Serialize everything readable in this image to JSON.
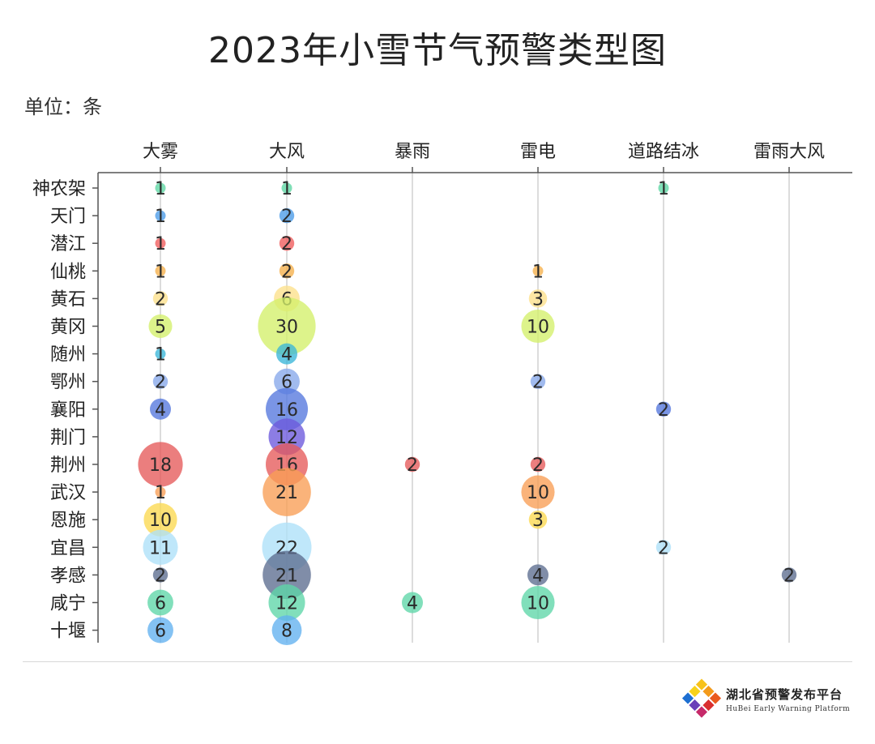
{
  "chart_data": {
    "type": "bubble",
    "title": "2023年小雪节气预警类型图",
    "unit_label": "单位：条",
    "categories": [
      "大雾",
      "大风",
      "暴雨",
      "雷电",
      "道路结冰",
      "雷雨大风"
    ],
    "regions": [
      {
        "name": "神农架",
        "color": "#5cd6a3",
        "values": [
          1,
          1,
          null,
          null,
          1,
          null
        ]
      },
      {
        "name": "天门",
        "color": "#4a9be8",
        "values": [
          1,
          2,
          null,
          null,
          null,
          null
        ]
      },
      {
        "name": "潜江",
        "color": "#ef5b5b",
        "values": [
          1,
          2,
          null,
          null,
          null,
          null
        ]
      },
      {
        "name": "仙桃",
        "color": "#f5b04a",
        "values": [
          1,
          2,
          null,
          1,
          null,
          null
        ]
      },
      {
        "name": "黄石",
        "color": "#fde08a",
        "values": [
          2,
          6,
          null,
          3,
          null,
          null
        ]
      },
      {
        "name": "黄冈",
        "color": "#d4f06a",
        "values": [
          5,
          30,
          null,
          10,
          null,
          null
        ]
      },
      {
        "name": "随州",
        "color": "#3ab6d8",
        "values": [
          1,
          4,
          null,
          null,
          null,
          null
        ]
      },
      {
        "name": "鄂州",
        "color": "#86a8ea",
        "values": [
          2,
          6,
          null,
          2,
          null,
          null
        ]
      },
      {
        "name": "襄阳",
        "color": "#5577de",
        "values": [
          4,
          16,
          null,
          null,
          2,
          null
        ]
      },
      {
        "name": "荆门",
        "color": "#6b59dc",
        "values": [
          null,
          12,
          null,
          null,
          null,
          null
        ]
      },
      {
        "name": "荆州",
        "color": "#e55a5a",
        "values": [
          18,
          16,
          2,
          2,
          null,
          null
        ]
      },
      {
        "name": "武汉",
        "color": "#f99d55",
        "values": [
          1,
          21,
          null,
          10,
          null,
          null
        ]
      },
      {
        "name": "恩施",
        "color": "#fbd950",
        "values": [
          10,
          null,
          null,
          3,
          null,
          null
        ]
      },
      {
        "name": "宜昌",
        "color": "#ade0f8",
        "values": [
          11,
          22,
          null,
          null,
          2,
          null
        ]
      },
      {
        "name": "孝感",
        "color": "#5c6d8f",
        "values": [
          2,
          21,
          null,
          4,
          null,
          2
        ]
      },
      {
        "name": "咸宁",
        "color": "#5ed6a8",
        "values": [
          6,
          12,
          4,
          10,
          null,
          null
        ]
      },
      {
        "name": "十堰",
        "color": "#62b1f0",
        "values": [
          6,
          8,
          null,
          null,
          null,
          null
        ]
      }
    ]
  },
  "footer": {
    "brand_cn": "湖北省预警发布平台",
    "brand_en": "HuBei Early Warning Platform"
  }
}
